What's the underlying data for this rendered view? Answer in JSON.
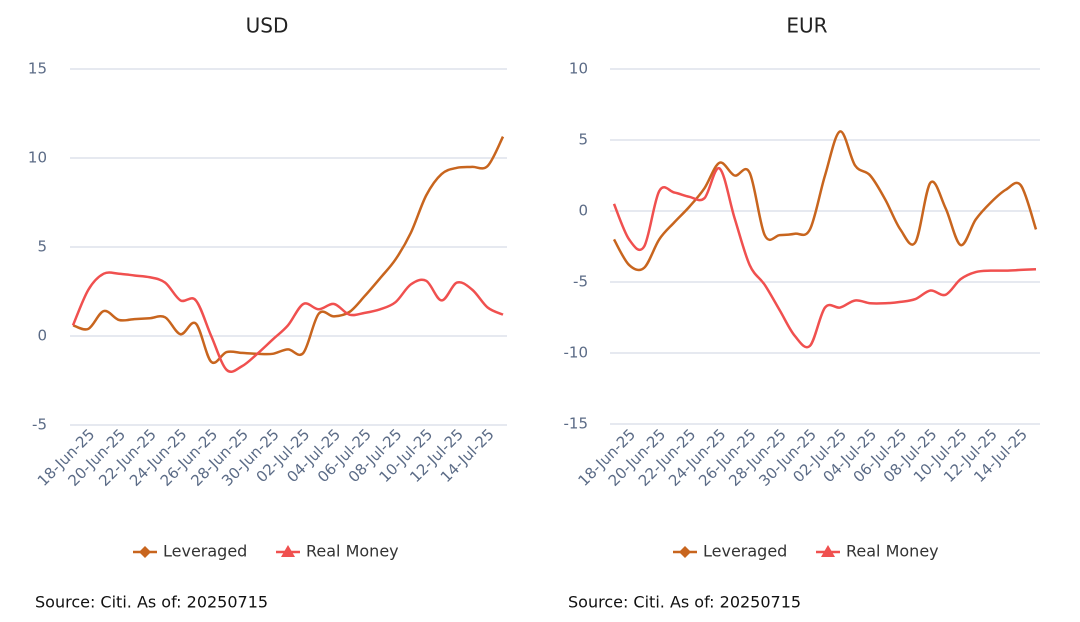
{
  "chart_data": [
    {
      "type": "line",
      "title": "USD",
      "categories": [
        null,
        "18-Jun-25",
        null,
        "20-Jun-25",
        null,
        "22-Jun-25",
        null,
        "24-Jun-25",
        null,
        "26-Jun-25",
        null,
        "28-Jun-25",
        null,
        "30-Jun-25",
        null,
        "02-Jul-25",
        null,
        "04-Jul-25",
        null,
        "06-Jul-25",
        null,
        "08-Jul-25",
        null,
        "10-Jul-25",
        null,
        "12-Jul-25",
        null,
        "14-Jul-25",
        null
      ],
      "series": [
        {
          "name": "Leveraged",
          "color": "#c8651e",
          "marker": "diamond",
          "values": [
            0.6,
            0.4,
            1.4,
            0.9,
            0.95,
            1.0,
            1.05,
            0.1,
            0.7,
            -1.45,
            -0.9,
            -0.95,
            -1.0,
            -1.0,
            -0.75,
            -0.95,
            1.25,
            1.1,
            1.35,
            2.25,
            3.25,
            4.3,
            5.8,
            7.9,
            9.1,
            9.45,
            9.5,
            9.55,
            11.2
          ]
        },
        {
          "name": "Real Money",
          "color": "#f0504f",
          "marker": "triangle",
          "values": [
            0.6,
            2.6,
            3.5,
            3.5,
            3.4,
            3.3,
            3.0,
            2.0,
            2.0,
            0.0,
            -1.9,
            -1.7,
            -1.0,
            -0.2,
            0.6,
            1.8,
            1.5,
            1.8,
            1.2,
            1.3,
            1.5,
            1.9,
            2.9,
            3.1,
            2.0,
            3.0,
            2.6,
            1.6,
            1.2
          ]
        }
      ],
      "ylim": [
        -5,
        15
      ],
      "yticks": [
        -5,
        0,
        5,
        10,
        15
      ],
      "grid": true,
      "source": "Source: Citi. As of: 20250715"
    },
    {
      "type": "line",
      "title": "EUR",
      "categories": [
        null,
        "18-Jun-25",
        null,
        "20-Jun-25",
        null,
        "22-Jun-25",
        null,
        "24-Jun-25",
        null,
        "26-Jun-25",
        null,
        "28-Jun-25",
        null,
        "30-Jun-25",
        null,
        "02-Jul-25",
        null,
        "04-Jul-25",
        null,
        "06-Jul-25",
        null,
        "08-Jul-25",
        null,
        "10-Jul-25",
        null,
        "12-Jul-25",
        null,
        "14-Jul-25",
        null
      ],
      "series": [
        {
          "name": "Leveraged",
          "color": "#c8651e",
          "marker": "diamond",
          "values": [
            -2.0,
            -3.8,
            -4.0,
            -2.0,
            -0.8,
            0.3,
            1.6,
            3.4,
            2.5,
            2.7,
            -1.7,
            -1.7,
            -1.6,
            -1.3,
            2.5,
            5.6,
            3.2,
            2.5,
            0.8,
            -1.3,
            -2.2,
            2.0,
            0.2,
            -2.4,
            -0.6,
            0.6,
            1.5,
            1.8,
            -1.3
          ]
        },
        {
          "name": "Real Money",
          "color": "#f0504f",
          "marker": "triangle",
          "values": [
            0.5,
            -2.0,
            -2.5,
            1.4,
            1.3,
            1.0,
            0.9,
            3.0,
            -0.5,
            -3.8,
            -5.2,
            -7.0,
            -8.8,
            -9.5,
            -6.8,
            -6.8,
            -6.3,
            -6.5,
            -6.5,
            -6.4,
            -6.2,
            -5.6,
            -5.9,
            -4.8,
            -4.3,
            -4.2,
            -4.2,
            -4.15,
            -4.1
          ]
        }
      ],
      "ylim": [
        -15,
        10
      ],
      "yticks": [
        -15,
        -10,
        -5,
        0,
        5,
        10
      ],
      "grid": true,
      "source": "Source: Citi. As of: 20250715"
    }
  ]
}
